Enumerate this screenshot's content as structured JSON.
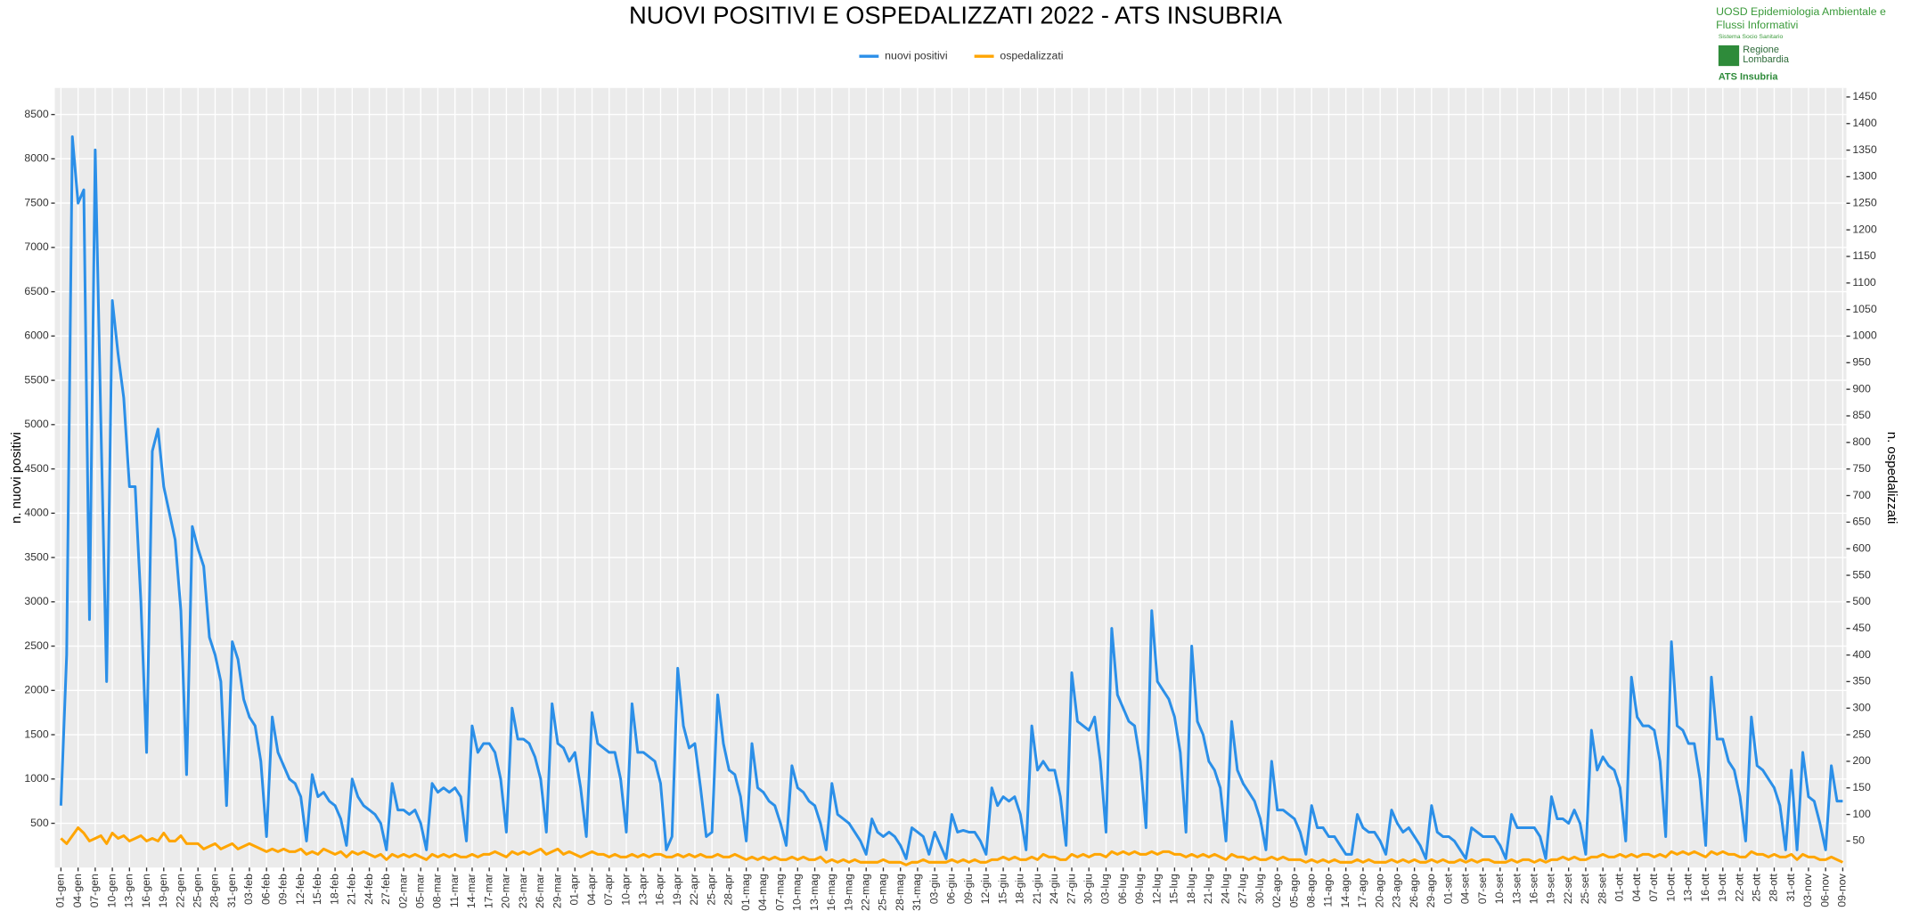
{
  "chart_data": {
    "type": "line",
    "title": "NUOVI POSITIVI E OSPEDALIZZATI 2022 - ATS INSUBRIA",
    "ylabel": "n. nuovi positivi",
    "y2label": "n. ospedalizzati",
    "annotations": [
      "UOSD Epidemiologia Ambientale e",
      "Flussi Informativi",
      "Sistema Socio Sanitario",
      "Regione Lombardia",
      "ATS Insubria"
    ],
    "grid": true,
    "legend": "top",
    "ylim": [
      0,
      8800
    ],
    "yticks": [
      500,
      1000,
      1500,
      2000,
      2500,
      3000,
      3500,
      4000,
      4500,
      5000,
      5500,
      6000,
      6500,
      7000,
      7500,
      8000,
      8500
    ],
    "y2lim": [
      0,
      1467
    ],
    "y2ticks": [
      50,
      100,
      150,
      200,
      250,
      300,
      350,
      400,
      450,
      500,
      550,
      600,
      650,
      700,
      750,
      800,
      850,
      900,
      950,
      1000,
      1050,
      1100,
      1150,
      1200,
      1250,
      1300,
      1350,
      1400,
      1450
    ],
    "categories": [
      "01-gen",
      null,
      null,
      "04-gen",
      null,
      null,
      "07-gen",
      null,
      null,
      "10-gen",
      null,
      null,
      "13-gen",
      null,
      null,
      "16-gen",
      null,
      null,
      "19-gen",
      null,
      null,
      "22-gen",
      null,
      null,
      "25-gen",
      null,
      null,
      "28-gen",
      null,
      null,
      "31-gen",
      null,
      null,
      "03-feb",
      null,
      null,
      "06-feb",
      null,
      null,
      "09-feb",
      null,
      null,
      "12-feb",
      null,
      null,
      "15-feb",
      null,
      null,
      "18-feb",
      null,
      null,
      "21-feb",
      null,
      null,
      "24-feb",
      null,
      null,
      "27-feb",
      null,
      null,
      "02-mar",
      null,
      null,
      "05-mar",
      null,
      null,
      "08-mar",
      null,
      null,
      "11-mar",
      null,
      null,
      "14-mar",
      null,
      null,
      "17-mar",
      null,
      null,
      "20-mar",
      null,
      null,
      "23-mar",
      null,
      null,
      "26-mar",
      null,
      null,
      "29-mar",
      null,
      null,
      "01-apr",
      null,
      null,
      "04-apr",
      null,
      null,
      "07-apr",
      null,
      null,
      "10-apr",
      null,
      null,
      "13-apr",
      null,
      null,
      "16-apr",
      null,
      null,
      "19-apr",
      null,
      null,
      "22-apr",
      null,
      null,
      "25-apr",
      null,
      null,
      "28-apr",
      null,
      null,
      "01-mag",
      null,
      null,
      "04-mag",
      null,
      null,
      "07-mag",
      null,
      null,
      "10-mag",
      null,
      null,
      "13-mag",
      null,
      null,
      "16-mag",
      null,
      null,
      "19-mag",
      null,
      null,
      "22-mag",
      null,
      null,
      "25-mag",
      null,
      null,
      "28-mag",
      null,
      null,
      "31-mag",
      null,
      null,
      "03-giu",
      null,
      null,
      "06-giu",
      null,
      null,
      "09-giu",
      null,
      null,
      "12-giu",
      null,
      null,
      "15-giu",
      null,
      null,
      "18-giu",
      null,
      null,
      "21-giu",
      null,
      null,
      "24-giu",
      null,
      null,
      "27-giu",
      null,
      null,
      "30-giu",
      null,
      null,
      "03-lug",
      null,
      null,
      "06-lug",
      null,
      null,
      "09-lug",
      null,
      null,
      "12-lug",
      null,
      null,
      "15-lug",
      null,
      null,
      "18-lug",
      null,
      null,
      "21-lug",
      null,
      null,
      "24-lug",
      null,
      null,
      "27-lug",
      null,
      null,
      "30-lug",
      null,
      null,
      "02-ago",
      null,
      null,
      "05-ago",
      null,
      null,
      "08-ago",
      null,
      null,
      "11-ago",
      null,
      null,
      "14-ago",
      null,
      null,
      "17-ago",
      null,
      null,
      "20-ago",
      null,
      null,
      "23-ago",
      null,
      null,
      "26-ago",
      null,
      null,
      "29-ago",
      null,
      null,
      "01-set",
      null,
      null,
      "04-set",
      null,
      null,
      "07-set",
      null,
      null,
      "10-set",
      null,
      null,
      "13-set",
      null,
      null,
      "16-set",
      null,
      null,
      "19-set",
      null,
      null,
      "22-set",
      null,
      null,
      "25-set",
      null,
      null,
      "28-set",
      null,
      null,
      "01-ott",
      null,
      null,
      "04-ott",
      null,
      null,
      "07-ott",
      null,
      null,
      "10-ott",
      null,
      null,
      "13-ott",
      null,
      null,
      "16-ott",
      null,
      null,
      "19-ott",
      null,
      null,
      "22-ott",
      null,
      null,
      "25-ott",
      null,
      null,
      "28-ott",
      null,
      null,
      "31-ott",
      null,
      null,
      "03-nov",
      null,
      null,
      "06-nov",
      null,
      null,
      "09-nov"
    ],
    "series": [
      {
        "name": "nuovi positivi",
        "color": "#2b8fe8",
        "values": [
          700,
          2400,
          8250,
          7500,
          7650,
          2800,
          8100,
          5000,
          2100,
          6400,
          5800,
          5300,
          4300,
          4300,
          3000,
          1300,
          4700,
          4950,
          4300,
          4000,
          3700,
          2900,
          1050,
          3850,
          3600,
          3400,
          2600,
          2400,
          2100,
          700,
          2550,
          2350,
          1900,
          1700,
          1600,
          1200,
          350,
          1700,
          1300,
          1150,
          1000,
          950,
          800,
          300,
          1050,
          800,
          850,
          750,
          700,
          550,
          250,
          1000,
          800,
          700,
          650,
          600,
          500,
          200,
          950,
          650,
          650,
          600,
          650,
          500,
          200,
          950,
          850,
          900,
          850,
          900,
          800,
          300,
          1600,
          1300,
          1400,
          1400,
          1300,
          1000,
          400,
          1800,
          1450,
          1450,
          1400,
          1250,
          1000,
          400,
          1850,
          1400,
          1350,
          1200,
          1300,
          900,
          350,
          1750,
          1400,
          1350,
          1300,
          1300,
          1000,
          400,
          1850,
          1300,
          1300,
          1250,
          1200,
          950,
          200,
          350,
          2250,
          1600,
          1350,
          1400,
          900,
          350,
          400,
          1950,
          1400,
          1100,
          1050,
          800,
          300,
          1400,
          900,
          850,
          750,
          700,
          500,
          250,
          1150,
          900,
          850,
          750,
          700,
          500,
          200,
          950,
          600,
          550,
          500,
          400,
          300,
          150,
          550,
          400,
          350,
          400,
          350,
          250,
          100,
          450,
          400,
          350,
          150,
          400,
          250,
          100,
          600,
          400,
          420,
          400,
          400,
          300,
          150,
          900,
          700,
          800,
          750,
          800,
          600,
          200,
          1600,
          1100,
          1200,
          1100,
          1100,
          800,
          250,
          2200,
          1650,
          1600,
          1550,
          1700,
          1200,
          400,
          2700,
          1950,
          1800,
          1650,
          1600,
          1200,
          450,
          2900,
          2100,
          2000,
          1900,
          1700,
          1300,
          400,
          2500,
          1650,
          1500,
          1200,
          1100,
          900,
          300,
          1650,
          1100,
          950,
          850,
          750,
          550,
          200,
          1200,
          650,
          650,
          600,
          550,
          400,
          150,
          700,
          450,
          450,
          350,
          350,
          250,
          150,
          150,
          600,
          450,
          400,
          400,
          300,
          150,
          650,
          500,
          400,
          450,
          350,
          250,
          100,
          700,
          400,
          350,
          350,
          300,
          200,
          100,
          450,
          400,
          350,
          350,
          350,
          250,
          100,
          600,
          450,
          450,
          450,
          450,
          350,
          100,
          800,
          550,
          550,
          500,
          650,
          500,
          150,
          1550,
          1100,
          1250,
          1150,
          1100,
          900,
          300,
          2150,
          1700,
          1600,
          1600,
          1550,
          1200,
          350,
          2550,
          1600,
          1550,
          1400,
          1400,
          1000,
          250,
          2150,
          1450,
          1450,
          1200,
          1100,
          800,
          300,
          1700,
          1150,
          1100,
          1000,
          900,
          700,
          200,
          1100,
          200,
          1300,
          800,
          750,
          500,
          200,
          1150,
          750,
          750
        ]
      },
      {
        "name": "ospedalizzati",
        "color": "#ffa500",
        "axis": "y2",
        "values": [
          55,
          45,
          60,
          75,
          65,
          50,
          55,
          60,
          45,
          65,
          55,
          60,
          50,
          55,
          60,
          50,
          55,
          50,
          65,
          50,
          50,
          60,
          45,
          45,
          45,
          35,
          40,
          45,
          35,
          40,
          45,
          35,
          40,
          45,
          40,
          35,
          30,
          35,
          30,
          35,
          30,
          30,
          35,
          25,
          30,
          25,
          35,
          30,
          25,
          30,
          20,
          30,
          25,
          30,
          25,
          20,
          25,
          15,
          25,
          20,
          25,
          20,
          25,
          20,
          15,
          25,
          20,
          25,
          20,
          25,
          20,
          20,
          25,
          20,
          25,
          25,
          30,
          25,
          20,
          30,
          25,
          30,
          25,
          30,
          35,
          25,
          30,
          35,
          25,
          30,
          25,
          20,
          25,
          30,
          25,
          25,
          20,
          25,
          20,
          20,
          25,
          20,
          25,
          20,
          25,
          25,
          20,
          20,
          25,
          20,
          25,
          20,
          25,
          20,
          20,
          25,
          20,
          20,
          25,
          20,
          15,
          20,
          15,
          20,
          15,
          20,
          15,
          15,
          20,
          15,
          20,
          15,
          15,
          20,
          10,
          15,
          10,
          15,
          10,
          15,
          10,
          10,
          10,
          10,
          15,
          10,
          10,
          10,
          5,
          10,
          10,
          15,
          10,
          10,
          10,
          10,
          15,
          10,
          15,
          10,
          15,
          10,
          10,
          15,
          15,
          20,
          15,
          20,
          15,
          15,
          20,
          15,
          25,
          20,
          20,
          15,
          15,
          25,
          20,
          25,
          20,
          25,
          25,
          20,
          30,
          25,
          30,
          25,
          30,
          25,
          25,
          30,
          25,
          30,
          30,
          25,
          25,
          20,
          25,
          20,
          25,
          20,
          25,
          20,
          15,
          25,
          20,
          20,
          15,
          20,
          15,
          15,
          20,
          15,
          20,
          15,
          15,
          15,
          10,
          15,
          10,
          15,
          10,
          15,
          10,
          10,
          10,
          15,
          10,
          15,
          10,
          10,
          10,
          15,
          10,
          15,
          10,
          15,
          10,
          10,
          15,
          10,
          15,
          10,
          10,
          15,
          10,
          15,
          10,
          15,
          15,
          10,
          10,
          10,
          15,
          10,
          15,
          15,
          10,
          15,
          10,
          15,
          15,
          20,
          15,
          20,
          15,
          15,
          20,
          20,
          25,
          20,
          20,
          25,
          20,
          25,
          20,
          25,
          25,
          20,
          25,
          20,
          30,
          25,
          30,
          25,
          30,
          25,
          20,
          30,
          25,
          30,
          25,
          25,
          20,
          20,
          30,
          25,
          25,
          20,
          25,
          20,
          20,
          25,
          15,
          25,
          20,
          20,
          15,
          15,
          20,
          15,
          10
        ]
      }
    ]
  }
}
